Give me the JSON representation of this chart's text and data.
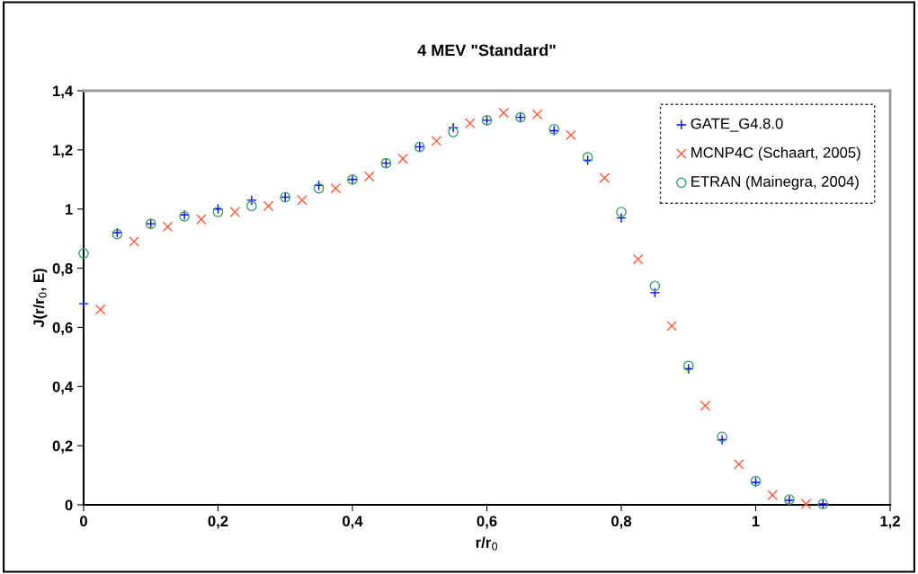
{
  "chart_data": {
    "type": "scatter",
    "title": "4 MEV \"Standard\"",
    "xlabel": "r/r$_{0}$",
    "ylabel": "J(r/r$_{0}$, E)",
    "xlim": [
      0,
      1.2
    ],
    "ylim": [
      0,
      1.4
    ],
    "xticks": [
      0,
      {
        "value": 0.2,
        "label": "0,2"
      },
      {
        "value": 0.4,
        "label": "0,4"
      },
      {
        "value": 0.6,
        "label": "0,6"
      },
      {
        "value": 0.8,
        "label": "0,8"
      },
      1,
      {
        "value": 1.2,
        "label": "1,2"
      }
    ],
    "yticks": [
      0,
      {
        "value": 0.2,
        "label": "0,2"
      },
      {
        "value": 0.4,
        "label": "0,4"
      },
      {
        "value": 0.6,
        "label": "0,6"
      },
      {
        "value": 0.8,
        "label": "0,8"
      },
      1,
      {
        "value": 1.2,
        "label": "1,2"
      },
      {
        "value": 1.4,
        "label": "1,4"
      }
    ],
    "grid": false,
    "legend": "top right",
    "series": [
      {
        "name": "GATE_G4.8.0",
        "color": "#0000ff",
        "marker": "plus",
        "x": [
          0,
          0.05,
          0.1,
          0.15,
          0.2,
          0.25,
          0.3,
          0.35,
          0.4,
          0.45,
          0.5,
          0.55,
          0.6,
          0.65,
          0.7,
          0.75,
          0.8,
          0.85,
          0.9,
          0.95,
          1.0,
          1.05,
          1.1
        ],
        "values": [
          0.68,
          0.92,
          0.95,
          0.98,
          1.0,
          1.03,
          1.04,
          1.08,
          1.1,
          1.155,
          1.21,
          1.275,
          1.3,
          1.31,
          1.265,
          1.165,
          0.97,
          0.717,
          0.46,
          0.22,
          0.076,
          0.015,
          0.003
        ]
      },
      {
        "name": "MCNP4C (Schaart, 2005)",
        "color": "#ff5a3c",
        "marker": "cross",
        "x": [
          0.025,
          0.075,
          0.125,
          0.175,
          0.225,
          0.275,
          0.325,
          0.375,
          0.425,
          0.475,
          0.525,
          0.575,
          0.625,
          0.675,
          0.725,
          0.775,
          0.825,
          0.875,
          0.925,
          0.975,
          1.025,
          1.075
        ],
        "values": [
          0.66,
          0.89,
          0.94,
          0.965,
          0.99,
          1.01,
          1.03,
          1.07,
          1.11,
          1.17,
          1.23,
          1.29,
          1.325,
          1.32,
          1.25,
          1.105,
          0.83,
          0.605,
          0.335,
          0.137,
          0.033,
          0.003
        ]
      },
      {
        "name": "ETRAN (Mainegra, 2004)",
        "color": "#3c9f6e",
        "marker": "circle",
        "x": [
          0,
          0.05,
          0.1,
          0.15,
          0.2,
          0.25,
          0.3,
          0.35,
          0.4,
          0.45,
          0.5,
          0.55,
          0.6,
          0.65,
          0.7,
          0.75,
          0.8,
          0.85,
          0.9,
          0.95,
          1.0,
          1.05,
          1.1
        ],
        "values": [
          0.85,
          0.915,
          0.95,
          0.975,
          0.99,
          1.01,
          1.04,
          1.07,
          1.1,
          1.155,
          1.21,
          1.26,
          1.3,
          1.31,
          1.27,
          1.175,
          0.99,
          0.74,
          0.47,
          0.23,
          0.08,
          0.018,
          0.003
        ]
      }
    ]
  }
}
